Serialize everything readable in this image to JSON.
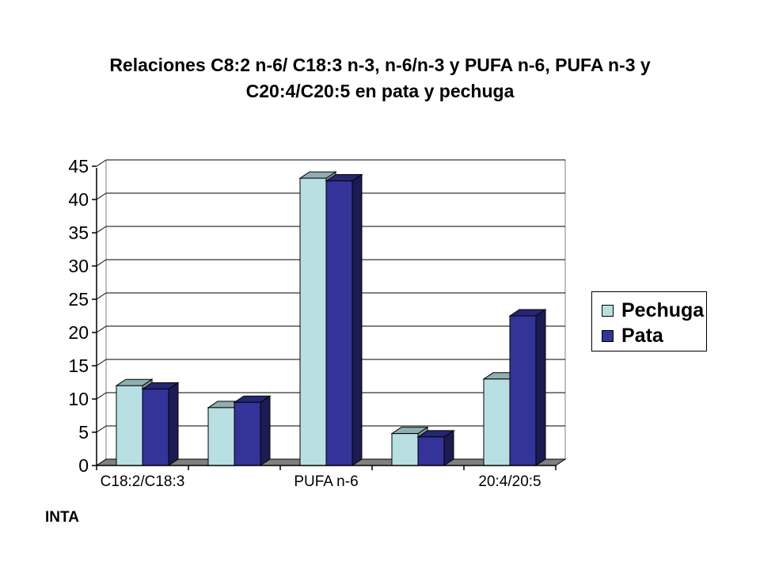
{
  "title_lines": [
    "Relaciones C8:2 n-6/ C18:3 n-3, n-6/n-3 y PUFA n-6, PUFA n-3 y",
    "C20:4/C20:5 en pata y pechuga"
  ],
  "footer": "INTA",
  "colors": {
    "pechuga": "#B8E0E3",
    "pata": "#333399",
    "floor": "#808080"
  },
  "chart_data": {
    "type": "bar",
    "title": "Relaciones C8:2 n-6/ C18:3 n-3, n-6/n-3 y PUFA n-6, PUFA n-3 y C20:4/C20:5 en pata y pechuga",
    "categories": [
      "C18:2/C18:3",
      "",
      "PUFA n-6",
      "",
      "20:4/20:5"
    ],
    "series": [
      {
        "name": "Pechuga",
        "values": [
          12,
          8.7,
          43.2,
          4.8,
          13
        ]
      },
      {
        "name": "Pata",
        "values": [
          11.5,
          9.5,
          42.8,
          4.3,
          22.5
        ]
      }
    ],
    "ylim": [
      0,
      45
    ],
    "yticks": [
      0,
      5,
      10,
      15,
      20,
      25,
      30,
      35,
      40,
      45
    ],
    "grid": true,
    "legend": "right",
    "style": "3d-clustered-column"
  }
}
